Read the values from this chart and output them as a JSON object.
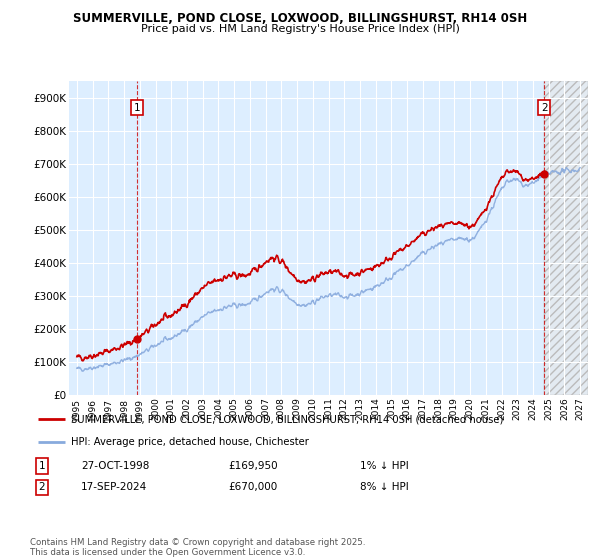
{
  "title1": "SUMMERVILLE, POND CLOSE, LOXWOOD, BILLINGSHURST, RH14 0SH",
  "title2": "Price paid vs. HM Land Registry's House Price Index (HPI)",
  "ylabel_ticks": [
    "£0",
    "£100K",
    "£200K",
    "£300K",
    "£400K",
    "£500K",
    "£600K",
    "£700K",
    "£800K",
    "£900K"
  ],
  "ytick_values": [
    0,
    100000,
    200000,
    300000,
    400000,
    500000,
    600000,
    700000,
    800000,
    900000
  ],
  "ylim": [
    0,
    950000
  ],
  "xlim_start": 1994.5,
  "xlim_end": 2027.5,
  "xticks": [
    1995,
    1996,
    1997,
    1998,
    1999,
    2000,
    2001,
    2002,
    2003,
    2004,
    2005,
    2006,
    2007,
    2008,
    2009,
    2010,
    2011,
    2012,
    2013,
    2014,
    2015,
    2016,
    2017,
    2018,
    2019,
    2020,
    2021,
    2022,
    2023,
    2024,
    2025,
    2026,
    2027
  ],
  "hpi_color": "#88aadd",
  "price_color": "#cc0000",
  "bg_color": "#ddeeff",
  "hatch_color": "#cccccc",
  "grid_color": "#ffffff",
  "legend_label_red": "SUMMERVILLE, POND CLOSE, LOXWOOD, BILLINGSHURST, RH14 0SH (detached house)",
  "legend_label_blue": "HPI: Average price, detached house, Chichester",
  "marker1_label": "1",
  "marker1_date": "27-OCT-1998",
  "marker1_price": "£169,950",
  "marker1_info": "1% ↓ HPI",
  "marker1_x": 1998.82,
  "marker1_y": 169950,
  "marker2_label": "2",
  "marker2_date": "17-SEP-2024",
  "marker2_price": "£670,000",
  "marker2_info": "8% ↓ HPI",
  "marker2_x": 2024.71,
  "marker2_y": 670000,
  "footnote": "Contains HM Land Registry data © Crown copyright and database right 2025.\nThis data is licensed under the Open Government Licence v3.0.",
  "vline_color": "#cc0000",
  "hpi_anchors_x": [
    1995.0,
    1995.5,
    1996.0,
    1996.5,
    1997.0,
    1997.5,
    1998.0,
    1998.5,
    1999.0,
    1999.5,
    2000.0,
    2000.5,
    2001.0,
    2001.5,
    2002.0,
    2002.5,
    2003.0,
    2003.5,
    2004.0,
    2004.5,
    2005.0,
    2005.5,
    2006.0,
    2006.5,
    2007.0,
    2007.5,
    2008.0,
    2008.5,
    2009.0,
    2009.5,
    2010.0,
    2010.5,
    2011.0,
    2011.5,
    2012.0,
    2012.5,
    2013.0,
    2013.5,
    2014.0,
    2014.5,
    2015.0,
    2015.5,
    2016.0,
    2016.5,
    2017.0,
    2017.5,
    2018.0,
    2018.5,
    2019.0,
    2019.5,
    2020.0,
    2020.5,
    2021.0,
    2021.5,
    2022.0,
    2022.5,
    2023.0,
    2023.5,
    2024.0,
    2024.5,
    2025.0,
    2025.5,
    2026.0,
    2026.5,
    2027.0
  ],
  "hpi_anchors_y": [
    78000,
    80000,
    83000,
    87000,
    92000,
    98000,
    104000,
    112000,
    122000,
    135000,
    150000,
    162000,
    172000,
    185000,
    200000,
    218000,
    235000,
    248000,
    258000,
    265000,
    270000,
    272000,
    278000,
    292000,
    310000,
    320000,
    315000,
    295000,
    278000,
    272000,
    280000,
    292000,
    300000,
    302000,
    298000,
    300000,
    308000,
    318000,
    328000,
    342000,
    358000,
    374000,
    390000,
    410000,
    428000,
    442000,
    455000,
    462000,
    468000,
    472000,
    470000,
    490000,
    530000,
    575000,
    620000,
    648000,
    650000,
    635000,
    640000,
    660000,
    670000,
    675000,
    678000,
    680000,
    682000
  ],
  "noise_seed": 42,
  "noise_amplitude": 8000
}
